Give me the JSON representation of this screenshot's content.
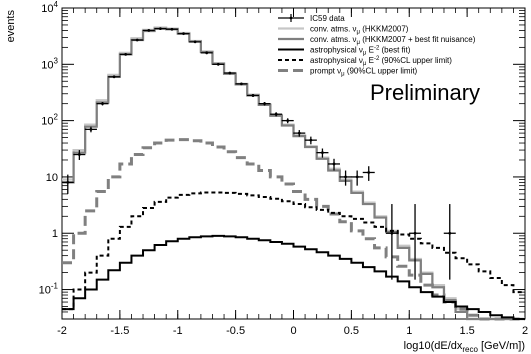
{
  "chart_data": {
    "type": "line",
    "xlabel": "log10(dE/dx",
    "xlabel_sub": "reco",
    "xlabel_tail": " [GeV/m])",
    "ylabel": "events",
    "xlim": [
      -2,
      2
    ],
    "ylim": [
      0.03,
      10000
    ],
    "yscale": "log",
    "grid": false,
    "legend_position": "top-right",
    "annotation": "Preliminary",
    "xticks": [
      -2,
      -1.5,
      -1,
      -0.5,
      0,
      0.5,
      1,
      1.5,
      2
    ],
    "xtick_labels": [
      "-2",
      "-1.5",
      "-1",
      "-0.5",
      "0",
      "0.5",
      "1",
      "1.5",
      "2"
    ],
    "yticks": [
      0.1,
      1,
      10,
      100,
      1000,
      10000
    ],
    "ytick_labels": [
      {
        "base": "10",
        "exp": "-1"
      },
      {
        "base": "1",
        "exp": ""
      },
      {
        "base": "10",
        "exp": ""
      },
      {
        "base": "10",
        "exp": "2"
      },
      {
        "base": "10",
        "exp": "3"
      },
      {
        "base": "10",
        "exp": "4"
      }
    ],
    "bin_edges": [
      -2.0,
      -1.9,
      -1.8,
      -1.7,
      -1.6,
      -1.5,
      -1.4,
      -1.3,
      -1.2,
      -1.1,
      -1.0,
      -0.9,
      -0.8,
      -0.7,
      -0.6,
      -0.5,
      -0.4,
      -0.3,
      -0.2,
      -0.1,
      0.0,
      0.1,
      0.2,
      0.3,
      0.4,
      0.5,
      0.6,
      0.7,
      0.8,
      0.9,
      1.0,
      1.1,
      1.2,
      1.3,
      1.4,
      1.5,
      1.6,
      1.7,
      1.8,
      1.9,
      2.0
    ],
    "series": [
      {
        "name": "IC59 data",
        "style": "points-with-errors",
        "color": "#000000",
        "x": [
          -1.95,
          -1.85,
          -1.75,
          -1.65,
          -1.55,
          -1.45,
          -1.35,
          -1.25,
          -1.15,
          -1.05,
          -0.95,
          -0.85,
          -0.75,
          -0.65,
          -0.55,
          -0.45,
          -0.35,
          -0.25,
          -0.15,
          -0.05,
          0.05,
          0.15,
          0.25,
          0.35,
          0.45,
          0.55,
          0.65,
          0.85,
          1.05,
          1.35
        ],
        "y": [
          8,
          25,
          70,
          200,
          600,
          1500,
          2700,
          4000,
          4300,
          4200,
          3500,
          2500,
          1600,
          1000,
          700,
          450,
          280,
          200,
          130,
          100,
          60,
          45,
          27,
          17,
          10,
          10,
          12,
          1,
          1,
          1
        ],
        "yerr_low": [
          3,
          5,
          8,
          14,
          25,
          39,
          52,
          63,
          66,
          65,
          59,
          50,
          40,
          32,
          26,
          21,
          17,
          14,
          11,
          10,
          8,
          7,
          5,
          4,
          3,
          3,
          3.5,
          0.85,
          0.85,
          0.85
        ],
        "yerr_high": [
          3,
          5,
          8,
          14,
          25,
          39,
          52,
          63,
          66,
          65,
          59,
          50,
          40,
          32,
          26,
          21,
          17,
          14,
          11,
          10,
          8,
          7,
          5,
          4,
          3,
          3,
          3.5,
          2.3,
          2.3,
          2.3
        ]
      },
      {
        "name": "conv. atms. ν",
        "name_sub": "μ",
        "name_tail": " (HKKM2007)",
        "style": "solid",
        "color": "#c6c6c6",
        "width": 2.2,
        "values": [
          9,
          30,
          85,
          230,
          650,
          1600,
          2900,
          4100,
          4500,
          4300,
          3600,
          2600,
          1700,
          1050,
          700,
          450,
          290,
          195,
          125,
          85,
          55,
          35,
          22,
          14,
          9,
          5.5,
          3.5,
          2,
          1.1,
          0.6,
          0.35,
          0.2,
          0.12,
          0.07,
          0.045,
          0.03,
          0.03,
          0.03,
          0.03,
          0.03
        ]
      },
      {
        "name": "conv. atms. ν",
        "name_sub": "μ",
        "name_tail": " (HKKM2007 + best fit nuisance)",
        "style": "solid",
        "color": "#7f7f7f",
        "width": 2.2,
        "values": [
          8,
          27,
          78,
          210,
          600,
          1500,
          2700,
          3900,
          4300,
          4200,
          3500,
          2550,
          1650,
          1020,
          680,
          440,
          280,
          190,
          122,
          82,
          53,
          34,
          21,
          13,
          8.5,
          5.2,
          3.3,
          1.9,
          1.05,
          0.55,
          0.33,
          0.19,
          0.11,
          0.065,
          0.04,
          0.03,
          0.03,
          0.03,
          0.03,
          0.03
        ]
      },
      {
        "name": "astrophysical ν",
        "name_sub": "μ",
        "name_tail": " E",
        "name_sup": "-2",
        "name_end": " (best fit)",
        "style": "solid",
        "color": "#000000",
        "width": 2,
        "values": [
          0.045,
          0.07,
          0.1,
          0.15,
          0.22,
          0.3,
          0.4,
          0.5,
          0.62,
          0.72,
          0.8,
          0.85,
          0.88,
          0.9,
          0.88,
          0.85,
          0.8,
          0.75,
          0.7,
          0.65,
          0.58,
          0.52,
          0.46,
          0.4,
          0.35,
          0.3,
          0.25,
          0.21,
          0.17,
          0.14,
          0.11,
          0.09,
          0.075,
          0.06,
          0.05,
          0.045,
          0.04,
          0.035,
          0.032,
          0.03
        ]
      },
      {
        "name": "astrophysical ν",
        "name_sub": "μ",
        "name_tail": " E",
        "name_sup": "-2",
        "name_end": " (90%CL upper limit)",
        "style": "dotted",
        "color": "#000000",
        "width": 2,
        "values": [
          0.045,
          0.1,
          0.2,
          0.4,
          0.8,
          1.3,
          2,
          2.8,
          3.6,
          4.3,
          4.8,
          5.1,
          5.3,
          5.3,
          5.2,
          5,
          4.7,
          4.4,
          4.1,
          3.7,
          3.3,
          2.9,
          2.6,
          2.3,
          2,
          1.8,
          1.55,
          1.3,
          1.1,
          0.95,
          0.8,
          0.66,
          0.55,
          0.45,
          0.36,
          0.28,
          0.21,
          0.16,
          0.12,
          0.09
        ]
      },
      {
        "name": "prompt ν",
        "name_sub": "μ",
        "name_tail": " (90%CL upper limit)",
        "style": "dashed",
        "color": "#808080",
        "width": 3,
        "values": [
          0.3,
          1,
          2.5,
          5.5,
          10,
          17,
          25,
          33,
          40,
          45,
          46,
          44,
          40,
          34,
          28,
          22,
          17,
          13,
          10,
          7.5,
          5.5,
          4,
          3,
          2.2,
          1.6,
          1.1,
          0.8,
          0.55,
          0.38,
          0.26,
          0.18,
          0.12,
          0.08,
          0.06,
          0.045,
          0.035,
          0.03,
          0.03,
          0.03,
          0.03
        ]
      }
    ]
  }
}
